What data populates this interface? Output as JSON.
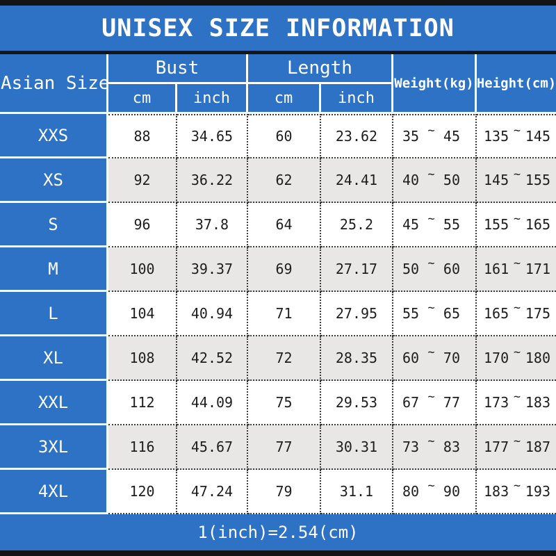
{
  "title": "UNISEX SIZE INFORMATION",
  "footer_note": "1(inch)=2.54(cm)",
  "tilde": "~",
  "colors": {
    "primary_blue": "#2d72c4",
    "alt_row_gray": "#e9e7e6",
    "bar_black": "#141414",
    "text_white": "#ffffff",
    "text_dark": "#1d1d1d"
  },
  "table": {
    "header": {
      "asian_size": "Asian Size",
      "bust": "Bust",
      "length": "Length",
      "cm": "cm",
      "inch": "inch",
      "weight": "Weight(kg)",
      "height": "Height(cm)"
    },
    "rows": [
      {
        "size": "XXS",
        "bust_cm": "88",
        "bust_inch": "34.65",
        "length_cm": "60",
        "length_inch": "23.62",
        "weight_min": "35",
        "weight_max": "45",
        "height_min": "135",
        "height_max": "145"
      },
      {
        "size": "XS",
        "bust_cm": "92",
        "bust_inch": "36.22",
        "length_cm": "62",
        "length_inch": "24.41",
        "weight_min": "40",
        "weight_max": "50",
        "height_min": "145",
        "height_max": "155"
      },
      {
        "size": "S",
        "bust_cm": "96",
        "bust_inch": "37.8",
        "length_cm": "64",
        "length_inch": "25.2",
        "weight_min": "45",
        "weight_max": "55",
        "height_min": "155",
        "height_max": "165"
      },
      {
        "size": "M",
        "bust_cm": "100",
        "bust_inch": "39.37",
        "length_cm": "69",
        "length_inch": "27.17",
        "weight_min": "50",
        "weight_max": "60",
        "height_min": "161",
        "height_max": "171"
      },
      {
        "size": "L",
        "bust_cm": "104",
        "bust_inch": "40.94",
        "length_cm": "71",
        "length_inch": "27.95",
        "weight_min": "55",
        "weight_max": "65",
        "height_min": "165",
        "height_max": "175"
      },
      {
        "size": "XL",
        "bust_cm": "108",
        "bust_inch": "42.52",
        "length_cm": "72",
        "length_inch": "28.35",
        "weight_min": "60",
        "weight_max": "70",
        "height_min": "170",
        "height_max": "180"
      },
      {
        "size": "XXL",
        "bust_cm": "112",
        "bust_inch": "44.09",
        "length_cm": "75",
        "length_inch": "29.53",
        "weight_min": "67",
        "weight_max": "77",
        "height_min": "173",
        "height_max": "183"
      },
      {
        "size": "3XL",
        "bust_cm": "116",
        "bust_inch": "45.67",
        "length_cm": "77",
        "length_inch": "30.31",
        "weight_min": "73",
        "weight_max": "83",
        "height_min": "177",
        "height_max": "187"
      },
      {
        "size": "4XL",
        "bust_cm": "120",
        "bust_inch": "47.24",
        "length_cm": "79",
        "length_inch": "31.1",
        "weight_min": "80",
        "weight_max": "90",
        "height_min": "183",
        "height_max": "193"
      }
    ]
  },
  "chart_data": {
    "type": "table",
    "title": "UNISEX SIZE INFORMATION",
    "note": "1(inch)=2.54(cm)",
    "columns": [
      "Asian Size",
      "Bust cm",
      "Bust inch",
      "Length cm",
      "Length inch",
      "Weight(kg)",
      "Height(cm)"
    ],
    "rows": [
      [
        "XXS",
        88,
        34.65,
        60,
        23.62,
        "35~45",
        "135~145"
      ],
      [
        "XS",
        92,
        36.22,
        62,
        24.41,
        "40~50",
        "145~155"
      ],
      [
        "S",
        96,
        37.8,
        64,
        25.2,
        "45~55",
        "155~165"
      ],
      [
        "M",
        100,
        39.37,
        69,
        27.17,
        "50~60",
        "161~171"
      ],
      [
        "L",
        104,
        40.94,
        71,
        27.95,
        "55~65",
        "165~175"
      ],
      [
        "XL",
        108,
        42.52,
        72,
        28.35,
        "60~70",
        "170~180"
      ],
      [
        "XXL",
        112,
        44.09,
        75,
        29.53,
        "67~77",
        "173~183"
      ],
      [
        "3XL",
        116,
        45.67,
        77,
        30.31,
        "73~83",
        "177~187"
      ],
      [
        "4XL",
        120,
        47.24,
        79,
        31.1,
        "80~90",
        "183~193"
      ]
    ]
  }
}
